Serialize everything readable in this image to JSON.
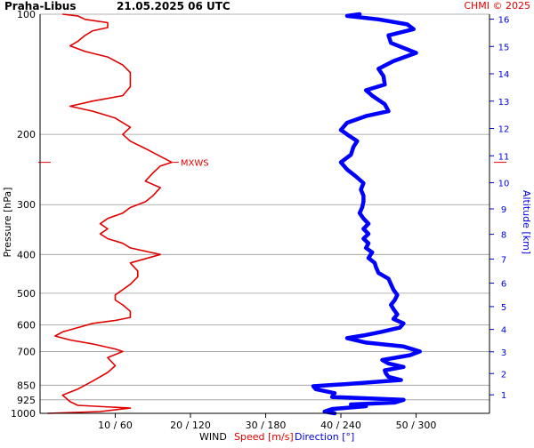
{
  "header": {
    "station": "Praha-Libus",
    "datetime": "21.05.2025 06 UTC",
    "copyright": "CHMI © 2025"
  },
  "axis_labels": {
    "pressure": "Pressure [hPa]",
    "altitude": "Altitude [km]",
    "wind": "WIND",
    "speed": "Speed [m/s]",
    "direction": "Direction [°]"
  },
  "colors": {
    "speed": "#e00000",
    "direction": "#0000ff",
    "grid": "#999999"
  },
  "chart_data": {
    "type": "line",
    "pressure_ticks": [
      100,
      200,
      300,
      400,
      500,
      600,
      700,
      850,
      925,
      1000
    ],
    "x_ticks": [
      "10 / 60",
      "20 / 120",
      "30 / 180",
      "40 / 240",
      "50 / 300"
    ],
    "speed_range": [
      0,
      60
    ],
    "direction_range": [
      0,
      360
    ],
    "altitude_km_ticks": [
      1,
      2,
      3,
      4,
      5,
      6,
      7,
      8,
      9,
      10,
      11,
      12,
      13,
      14,
      15,
      16
    ],
    "annotation": {
      "text": "MXWS",
      "pressure": 235,
      "speed": 17.5
    },
    "series": [
      {
        "name": "Speed [m/s]",
        "points": [
          [
            1000,
            1
          ],
          [
            990,
            8
          ],
          [
            970,
            12
          ],
          [
            955,
            5
          ],
          [
            935,
            4
          ],
          [
            900,
            3
          ],
          [
            870,
            5
          ],
          [
            830,
            7
          ],
          [
            790,
            9
          ],
          [
            760,
            10
          ],
          [
            725,
            9
          ],
          [
            700,
            11
          ],
          [
            690,
            10
          ],
          [
            670,
            7
          ],
          [
            655,
            4
          ],
          [
            640,
            2
          ],
          [
            625,
            3
          ],
          [
            610,
            5
          ],
          [
            595,
            7
          ],
          [
            585,
            10
          ],
          [
            575,
            12
          ],
          [
            555,
            12
          ],
          [
            535,
            11
          ],
          [
            520,
            10
          ],
          [
            505,
            10
          ],
          [
            490,
            11
          ],
          [
            475,
            12
          ],
          [
            455,
            13
          ],
          [
            440,
            13
          ],
          [
            420,
            12
          ],
          [
            405,
            15
          ],
          [
            400,
            16
          ],
          [
            385,
            12
          ],
          [
            375,
            11
          ],
          [
            365,
            9
          ],
          [
            355,
            8
          ],
          [
            345,
            9
          ],
          [
            335,
            8
          ],
          [
            325,
            9
          ],
          [
            315,
            11
          ],
          [
            305,
            12
          ],
          [
            295,
            14
          ],
          [
            285,
            15
          ],
          [
            272,
            16
          ],
          [
            262,
            14
          ],
          [
            250,
            15
          ],
          [
            240,
            16
          ],
          [
            235,
            17.5
          ],
          [
            227,
            16
          ],
          [
            217,
            14
          ],
          [
            208,
            12
          ],
          [
            200,
            11
          ],
          [
            192,
            12
          ],
          [
            182,
            10
          ],
          [
            175,
            7
          ],
          [
            170,
            4
          ],
          [
            165,
            7
          ],
          [
            160,
            11
          ],
          [
            152,
            12
          ],
          [
            146,
            12
          ],
          [
            140,
            12
          ],
          [
            134,
            11
          ],
          [
            128,
            9
          ],
          [
            124,
            6
          ],
          [
            120,
            4
          ],
          [
            117,
            5
          ],
          [
            113,
            6
          ],
          [
            110,
            7
          ],
          [
            108,
            9
          ],
          [
            105,
            9
          ],
          [
            103,
            6
          ],
          [
            101,
            5
          ],
          [
            100,
            3
          ]
        ]
      },
      {
        "name": "Direction [°]",
        "points": [
          [
            1000,
            235
          ],
          [
            990,
            227
          ],
          [
            975,
            233
          ],
          [
            960,
            260
          ],
          [
            950,
            248
          ],
          [
            940,
            283
          ],
          [
            925,
            290
          ],
          [
            910,
            233
          ],
          [
            890,
            235
          ],
          [
            870,
            220
          ],
          [
            855,
            218
          ],
          [
            845,
            243
          ],
          [
            825,
            288
          ],
          [
            810,
            278
          ],
          [
            795,
            276
          ],
          [
            780,
            275
          ],
          [
            765,
            290
          ],
          [
            750,
            278
          ],
          [
            735,
            273
          ],
          [
            715,
            295
          ],
          [
            700,
            303
          ],
          [
            680,
            290
          ],
          [
            665,
            260
          ],
          [
            648,
            245
          ],
          [
            638,
            258
          ],
          [
            625,
            272
          ],
          [
            610,
            287
          ],
          [
            595,
            290
          ],
          [
            580,
            282
          ],
          [
            565,
            285
          ],
          [
            548,
            282
          ],
          [
            535,
            280
          ],
          [
            520,
            283
          ],
          [
            505,
            285
          ],
          [
            490,
            282
          ],
          [
            475,
            280
          ],
          [
            460,
            278
          ],
          [
            445,
            270
          ],
          [
            430,
            268
          ],
          [
            420,
            267
          ],
          [
            408,
            262
          ],
          [
            395,
            265
          ],
          [
            385,
            260
          ],
          [
            375,
            262
          ],
          [
            365,
            258
          ],
          [
            355,
            262
          ],
          [
            345,
            258
          ],
          [
            335,
            262
          ],
          [
            325,
            258
          ],
          [
            315,
            255
          ],
          [
            305,
            257
          ],
          [
            295,
            258
          ],
          [
            285,
            258
          ],
          [
            275,
            256
          ],
          [
            265,
            258
          ],
          [
            255,
            252
          ],
          [
            245,
            245
          ],
          [
            235,
            240
          ],
          [
            225,
            248
          ],
          [
            215,
            250
          ],
          [
            208,
            253
          ],
          [
            200,
            245
          ],
          [
            195,
            240
          ],
          [
            187,
            245
          ],
          [
            180,
            260
          ],
          [
            175,
            278
          ],
          [
            168,
            275
          ],
          [
            160,
            265
          ],
          [
            155,
            260
          ],
          [
            150,
            275
          ],
          [
            143,
            274
          ],
          [
            137,
            270
          ],
          [
            131,
            282
          ],
          [
            125,
            300
          ],
          [
            118,
            280
          ],
          [
            113,
            278
          ],
          [
            109,
            298
          ],
          [
            106,
            293
          ],
          [
            103,
            270
          ],
          [
            101,
            245
          ],
          [
            100,
            255
          ]
        ]
      }
    ]
  }
}
